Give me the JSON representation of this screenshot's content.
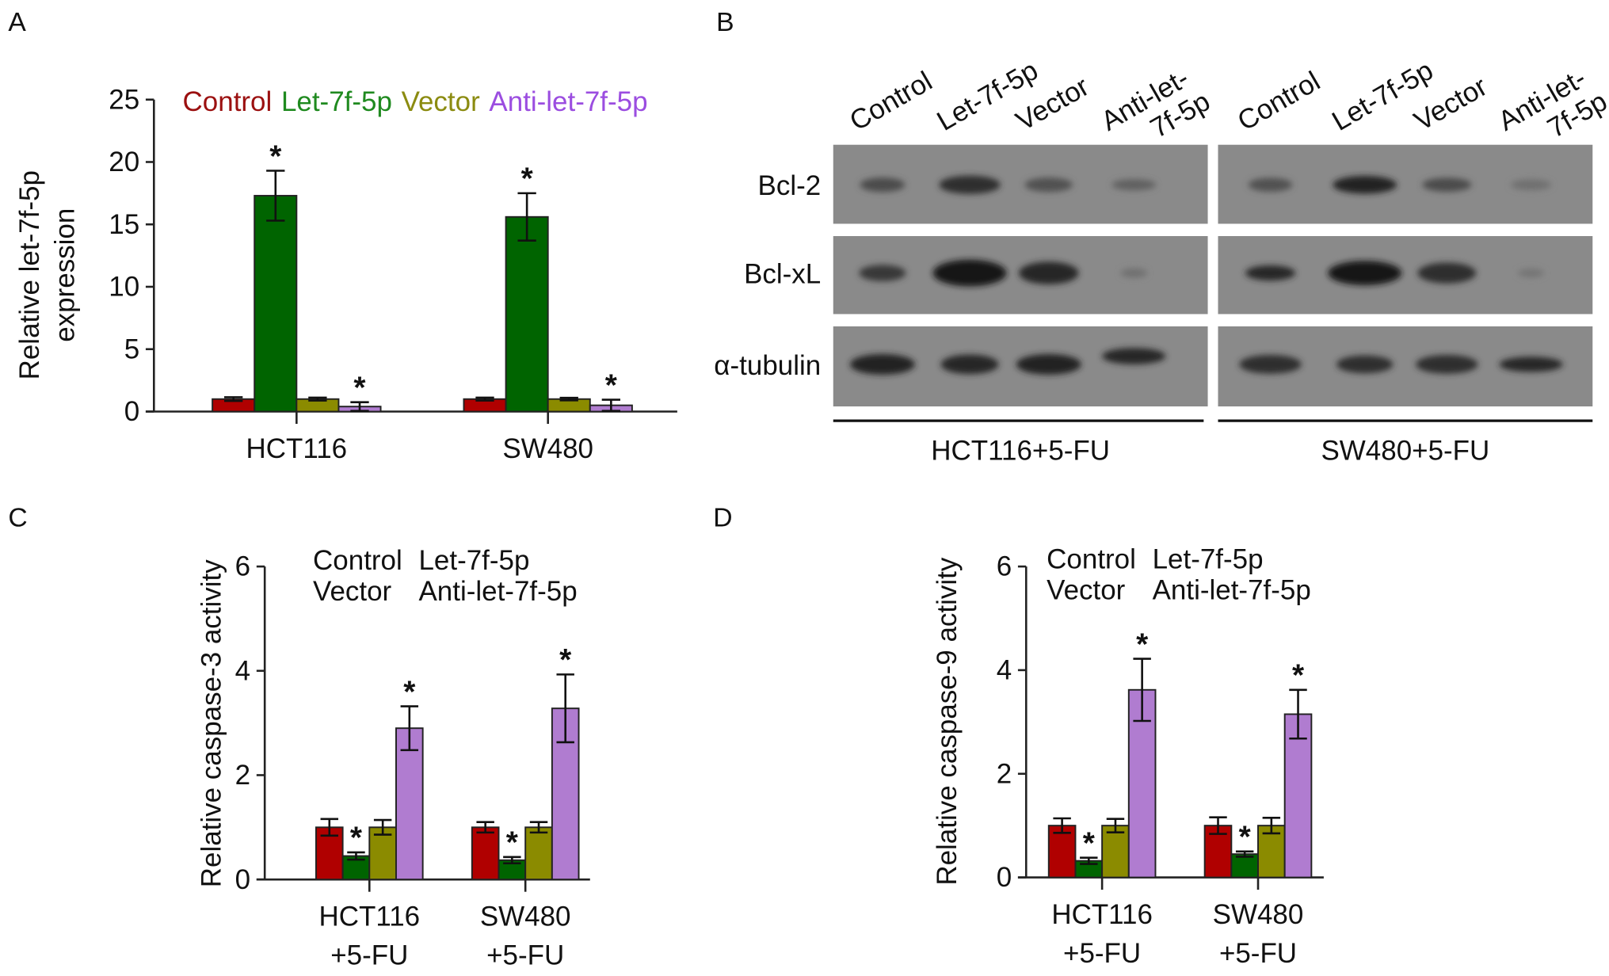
{
  "colors": {
    "Control": "#b00000",
    "Let-7f-5p": "#006400",
    "Vector": "#8b8b00",
    "Anti-let-7f-5p": "#b07cd0"
  },
  "legend_text_colors": {
    "Control": "#9b1010",
    "Let-7f-5p": "#1f8a1f",
    "Vector": "#8b8b10",
    "Anti-let-7f-5p": "#9b4de0"
  },
  "chart_data": [
    {
      "panel": "A",
      "type": "bar",
      "ylabel": [
        "Relative let-7f-5p",
        "expression"
      ],
      "ylim": [
        0,
        25
      ],
      "yticks": [
        "0",
        "5",
        "10",
        "15",
        "20",
        "25"
      ],
      "categories": [
        [
          "HCT116"
        ],
        [
          "SW480"
        ]
      ],
      "series": [
        {
          "name": "Control",
          "values": [
            1.0,
            1.0
          ],
          "errors": [
            0.15,
            0.12
          ]
        },
        {
          "name": "Let-7f-5p",
          "values": [
            17.3,
            15.6
          ],
          "errors": [
            2.0,
            1.9
          ]
        },
        {
          "name": "Vector",
          "values": [
            1.0,
            1.0
          ],
          "errors": [
            0.12,
            0.1
          ]
        },
        {
          "name": "Anti-let-7f-5p",
          "values": [
            0.4,
            0.5
          ],
          "errors": [
            0.35,
            0.45
          ]
        }
      ],
      "significance": [
        [
          false,
          true,
          false,
          true
        ],
        [
          false,
          true,
          false,
          true
        ]
      ],
      "significance_mark": "*",
      "legend": "top-inline"
    },
    {
      "panel": "C",
      "type": "bar",
      "ylabel": [
        "Relative caspase-3 activity"
      ],
      "ylim": [
        0,
        6
      ],
      "yticks": [
        "0",
        "2",
        "4",
        "6"
      ],
      "categories": [
        [
          "HCT116",
          "+5-FU"
        ],
        [
          "SW480",
          "+5-FU"
        ]
      ],
      "series": [
        {
          "name": "Control",
          "values": [
            1.0,
            1.0
          ],
          "errors": [
            0.16,
            0.1
          ]
        },
        {
          "name": "Let-7f-5p",
          "values": [
            0.45,
            0.37
          ],
          "errors": [
            0.07,
            0.06
          ]
        },
        {
          "name": "Vector",
          "values": [
            1.0,
            1.0
          ],
          "errors": [
            0.14,
            0.1
          ]
        },
        {
          "name": "Anti-let-7f-5p",
          "values": [
            2.9,
            3.28
          ],
          "errors": [
            0.42,
            0.65
          ]
        }
      ],
      "significance": [
        [
          false,
          true,
          false,
          true
        ],
        [
          false,
          true,
          false,
          true
        ]
      ],
      "significance_mark": "*",
      "legend": "top-two-rows"
    },
    {
      "panel": "D",
      "type": "bar",
      "ylabel": [
        "Relative caspase-9 activity"
      ],
      "ylim": [
        0,
        6
      ],
      "yticks": [
        "0",
        "2",
        "4",
        "6"
      ],
      "categories": [
        [
          "HCT116",
          "+5-FU"
        ],
        [
          "SW480",
          "+5-FU"
        ]
      ],
      "series": [
        {
          "name": "Control",
          "values": [
            1.0,
            1.0
          ],
          "errors": [
            0.14,
            0.16
          ]
        },
        {
          "name": "Let-7f-5p",
          "values": [
            0.32,
            0.45
          ],
          "errors": [
            0.06,
            0.05
          ]
        },
        {
          "name": "Vector",
          "values": [
            1.0,
            1.0
          ],
          "errors": [
            0.13,
            0.15
          ]
        },
        {
          "name": "Anti-let-7f-5p",
          "values": [
            3.62,
            3.15
          ],
          "errors": [
            0.6,
            0.47
          ]
        }
      ],
      "significance": [
        [
          false,
          true,
          false,
          true
        ],
        [
          false,
          true,
          false,
          true
        ]
      ],
      "significance_mark": "*",
      "legend": "top-two-rows"
    }
  ],
  "blot": {
    "panel": "B",
    "lanes": [
      "Control",
      "Let-7f-5p",
      "Vector",
      [
        "Anti-let-",
        "7f-5p"
      ]
    ],
    "groups": [
      "HCT116+5-FU",
      "SW480+5-FU"
    ],
    "proteins": [
      "Bcl-2",
      "Bcl-xL",
      "α-tubulin"
    ],
    "band_intensity": {
      "HCT116+5-FU": [
        [
          0.5,
          0.8,
          0.45,
          0.3
        ],
        [
          0.7,
          1.0,
          0.85,
          0.15
        ],
        [
          0.9,
          0.85,
          0.9,
          0.85
        ]
      ],
      "SW480+5-FU": [
        [
          0.45,
          0.9,
          0.5,
          0.15
        ],
        [
          0.85,
          1.0,
          0.8,
          0.12
        ],
        [
          0.8,
          0.8,
          0.8,
          0.85
        ]
      ]
    }
  }
}
